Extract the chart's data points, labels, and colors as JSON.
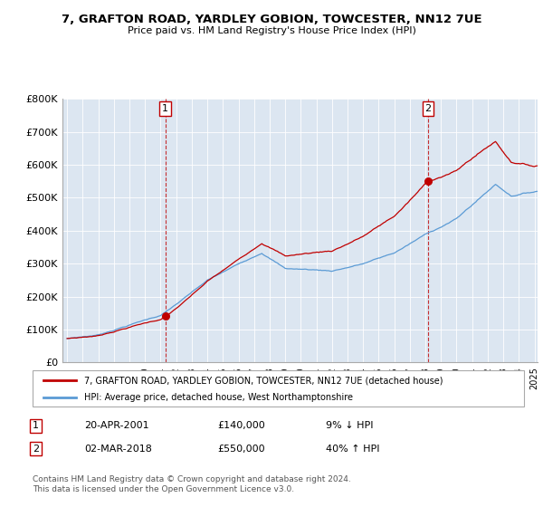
{
  "title1": "7, GRAFTON ROAD, YARDLEY GOBION, TOWCESTER, NN12 7UE",
  "title2": "Price paid vs. HM Land Registry's House Price Index (HPI)",
  "ylim": [
    0,
    800000
  ],
  "yticks": [
    0,
    100000,
    200000,
    300000,
    400000,
    500000,
    600000,
    700000,
    800000
  ],
  "ytick_labels": [
    "£0",
    "£100K",
    "£200K",
    "£300K",
    "£400K",
    "£500K",
    "£600K",
    "£700K",
    "£800K"
  ],
  "hpi_color": "#5b9bd5",
  "price_color": "#c00000",
  "plot_bg_color": "#dce6f1",
  "grid_color": "#ffffff",
  "transaction1_year": 2001.3,
  "transaction1_price": 140000,
  "transaction1_label": "1",
  "transaction2_year": 2018.17,
  "transaction2_price": 550000,
  "transaction2_label": "2",
  "legend_line1": "7, GRAFTON ROAD, YARDLEY GOBION, TOWCESTER, NN12 7UE (detached house)",
  "legend_line2": "HPI: Average price, detached house, West Northamptonshire",
  "note1_label": "1",
  "note1_date": "20-APR-2001",
  "note1_price": "£140,000",
  "note1_pct": "9% ↓ HPI",
  "note2_label": "2",
  "note2_date": "02-MAR-2018",
  "note2_price": "£550,000",
  "note2_pct": "40% ↑ HPI",
  "footer": "Contains HM Land Registry data © Crown copyright and database right 2024.\nThis data is licensed under the Open Government Licence v3.0.",
  "xlim_left": 1995.0,
  "xlim_right": 2025.2
}
